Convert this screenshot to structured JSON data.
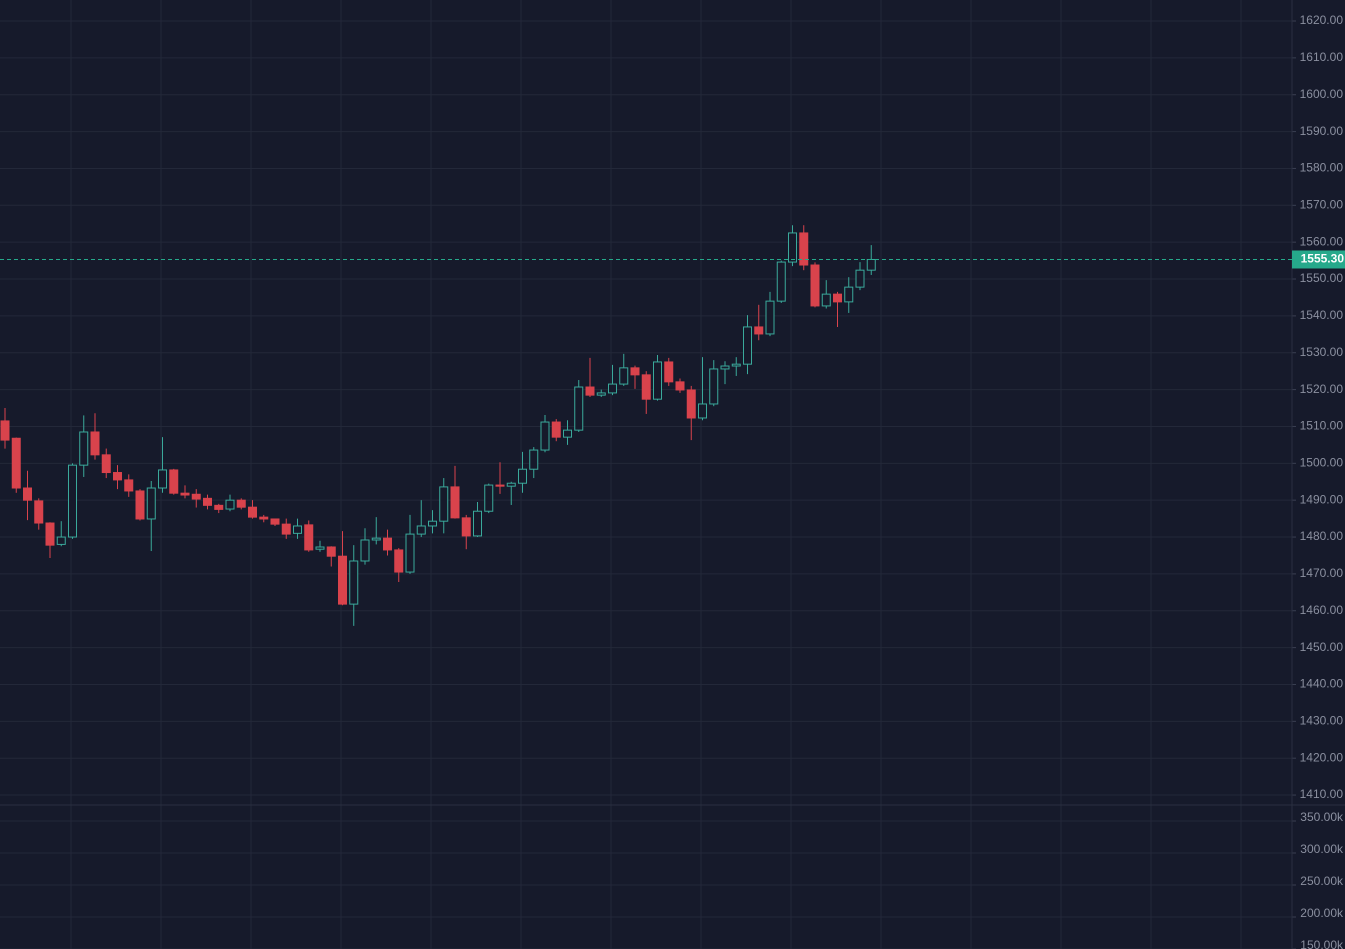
{
  "chart_data": {
    "type": "candlestick",
    "up_color": "#3aa99b",
    "down_color": "#d9434c",
    "grid": true,
    "ylim": [
      1407.3,
      1625.7
    ],
    "yticks": [
      {
        "value": 1620,
        "label": "1620.00"
      },
      {
        "value": 1610,
        "label": "1610.00"
      },
      {
        "value": 1600,
        "label": "1600.00"
      },
      {
        "value": 1590,
        "label": "1590.00"
      },
      {
        "value": 1580,
        "label": "1580.00"
      },
      {
        "value": 1570,
        "label": "1570.00"
      },
      {
        "value": 1560,
        "label": "1560.00"
      },
      {
        "value": 1550,
        "label": "1550.00"
      },
      {
        "value": 1540,
        "label": "1540.00"
      },
      {
        "value": 1530,
        "label": "1530.00"
      },
      {
        "value": 1520,
        "label": "1520.00"
      },
      {
        "value": 1510,
        "label": "1510.00"
      },
      {
        "value": 1500,
        "label": "1500.00"
      },
      {
        "value": 1490,
        "label": "1490.00"
      },
      {
        "value": 1480,
        "label": "1480.00"
      },
      {
        "value": 1470,
        "label": "1470.00"
      },
      {
        "value": 1460,
        "label": "1460.00"
      },
      {
        "value": 1450,
        "label": "1450.00"
      },
      {
        "value": 1440,
        "label": "1440.00"
      },
      {
        "value": 1430,
        "label": "1430.00"
      },
      {
        "value": 1420,
        "label": "1420.00"
      },
      {
        "value": 1410,
        "label": "1410.00"
      }
    ],
    "volume_ylim": [
      150000,
      375000
    ],
    "volume_yticks": [
      {
        "value": 350000,
        "label": "350.00k"
      },
      {
        "value": 300000,
        "label": "300.00k"
      },
      {
        "value": 250000,
        "label": "250.00k"
      },
      {
        "value": 200000,
        "label": "200.00k"
      },
      {
        "value": 150000,
        "label": "150.00k"
      }
    ],
    "last_price": {
      "value": 1555.3,
      "label": "1555.30",
      "color": "#26a98b"
    },
    "open": [
      1511.5,
      1506.8,
      1493.3,
      1489.8,
      1483.8,
      1478,
      1480,
      1499.5,
      1508.5,
      1502.3,
      1497.5,
      1495.5,
      1492.5,
      1484.9,
      1493.3,
      1498.2,
      1491.9,
      1491.6,
      1490.5,
      1488.6,
      1487.6,
      1490,
      1488.1,
      1485.4,
      1484.9,
      1483.5,
      1481,
      1483.3,
      1476.7,
      1477.3,
      1474.8,
      1461.8,
      1473.5,
      1479.2,
      1479.7,
      1476.5,
      1470.5,
      1480.8,
      1483,
      1484.3,
      1493.6,
      1485.2,
      1480.3,
      1487,
      1494.1,
      1493.8,
      1494.6,
      1498.4,
      1503.6,
      1511.2,
      1507.1,
      1509,
      1520.7,
      1518.5,
      1519.1,
      1521.5,
      1525.9,
      1524,
      1517.4,
      1527.5,
      1522.1,
      1519.9,
      1512.3,
      1516.1,
      1525.6,
      1526.4,
      1526.9,
      1537,
      1535.1,
      1544,
      1554.6,
      1562.5,
      1553.8,
      1542.7,
      1545.9,
      1543.8,
      1547.8,
      1552.4
    ],
    "high": [
      1515,
      1507,
      1498,
      1490.5,
      1484,
      1484.3,
      1500,
      1513,
      1513.6,
      1504,
      1499.5,
      1497,
      1493,
      1495.2,
      1507.1,
      1498.5,
      1494,
      1493,
      1491.5,
      1489,
      1491.5,
      1490.5,
      1490,
      1486,
      1485,
      1485,
      1485,
      1484.5,
      1479,
      1477.5,
      1481.6,
      1477.8,
      1482.4,
      1485.4,
      1482,
      1477,
      1486,
      1490,
      1487.3,
      1496,
      1499.3,
      1486,
      1489.5,
      1494.5,
      1500.3,
      1495,
      1503.1,
      1504.4,
      1513.1,
      1512,
      1511.7,
      1522.6,
      1528.6,
      1520,
      1526.7,
      1529.7,
      1526.5,
      1525,
      1529.4,
      1528.6,
      1523,
      1521,
      1528.8,
      1528,
      1527.7,
      1528.8,
      1540.2,
      1543,
      1546.5,
      1555,
      1564.6,
      1564.6,
      1554.5,
      1549.7,
      1546.5,
      1550.5,
      1554.6,
      1559.2
    ],
    "low": [
      1504,
      1492,
      1484.6,
      1482,
      1474.3,
      1477.5,
      1479.5,
      1496.3,
      1501,
      1496,
      1493,
      1490.9,
      1484.5,
      1476.2,
      1492,
      1491.5,
      1490.5,
      1488,
      1487.5,
      1486.5,
      1487,
      1487.5,
      1485,
      1484,
      1483,
      1479.5,
      1479.5,
      1476,
      1476,
      1472,
      1461.5,
      1455.9,
      1472.5,
      1478,
      1475,
      1467.8,
      1470,
      1480,
      1481,
      1481,
      1485,
      1476.7,
      1480,
      1486.5,
      1491.7,
      1488.7,
      1492,
      1496,
      1503,
      1506,
      1505,
      1508.5,
      1518,
      1518,
      1518.5,
      1521,
      1520.2,
      1513.4,
      1517,
      1521,
      1519.1,
      1506.3,
      1511.7,
      1515.5,
      1521.5,
      1523.7,
      1524.2,
      1533.4,
      1534.5,
      1543.5,
      1553.5,
      1552.4,
      1542.3,
      1542,
      1537,
      1540.8,
      1547,
      1551.1
    ],
    "close": [
      1506.3,
      1493.3,
      1490,
      1483.8,
      1477.8,
      1480,
      1499.5,
      1508.5,
      1502.3,
      1497.5,
      1495.5,
      1492.5,
      1484.9,
      1493.3,
      1498.2,
      1491.9,
      1491.4,
      1490.3,
      1488.6,
      1487.5,
      1490,
      1488.1,
      1485.4,
      1484.9,
      1483.5,
      1480.8,
      1483,
      1476.5,
      1477.3,
      1474.8,
      1461.8,
      1473.5,
      1479.2,
      1479.7,
      1476.5,
      1470.5,
      1480.8,
      1483,
      1484.3,
      1493.6,
      1485.2,
      1480.3,
      1487,
      1494.1,
      1493.8,
      1494.6,
      1498.4,
      1503.6,
      1511.2,
      1507.1,
      1509,
      1520.7,
      1518.5,
      1519.1,
      1521.5,
      1525.9,
      1524,
      1517.4,
      1527.5,
      1522.1,
      1519.9,
      1512.3,
      1516.1,
      1525.6,
      1526.4,
      1526.9,
      1537,
      1535.1,
      1544,
      1554.6,
      1562.5,
      1553.8,
      1542.7,
      1545.9,
      1543.8,
      1547.8,
      1552.4,
      1555.3
    ]
  }
}
